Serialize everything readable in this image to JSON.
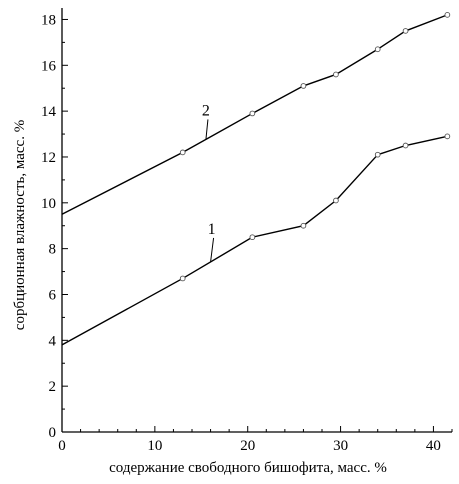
{
  "chart_data": {
    "type": "line",
    "title": "",
    "xlabel": "содержание свободного бишофита, масс. %",
    "ylabel": "сорбционная влажность, масс. %",
    "xlim": [
      0,
      42
    ],
    "ylim": [
      0,
      18.5
    ],
    "xticks": [
      0,
      10,
      20,
      30,
      40
    ],
    "yticks": [
      0,
      2,
      4,
      6,
      8,
      10,
      12,
      14,
      16,
      18
    ],
    "grid": false,
    "series": [
      {
        "name": "1",
        "x": [
          0,
          13,
          20.5,
          26,
          29.5,
          34,
          37,
          41.5
        ],
        "y": [
          3.8,
          6.7,
          8.5,
          9.0,
          10.1,
          12.1,
          12.5,
          12.9
        ]
      },
      {
        "name": "2",
        "x": [
          0,
          13,
          20.5,
          26,
          29.5,
          34,
          37,
          41.5
        ],
        "y": [
          9.5,
          12.2,
          13.9,
          15.1,
          15.6,
          16.7,
          17.5,
          18.2
        ]
      }
    ]
  }
}
